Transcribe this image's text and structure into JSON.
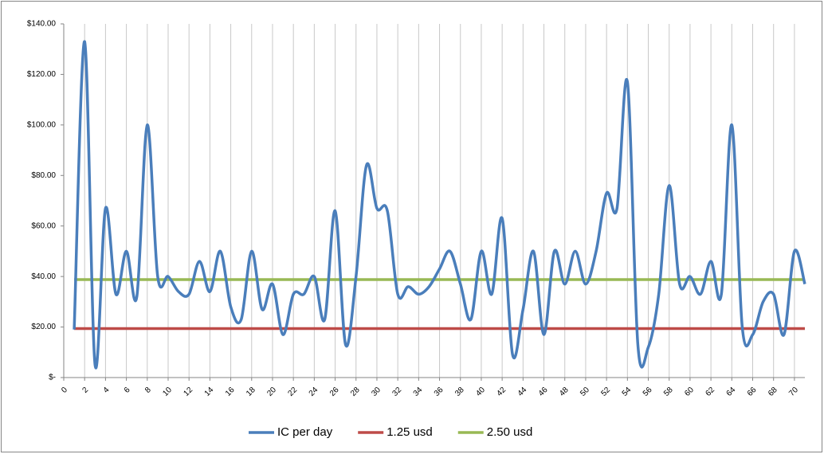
{
  "chart_data": {
    "type": "line",
    "x": [
      1,
      2,
      3,
      4,
      5,
      6,
      7,
      8,
      9,
      10,
      11,
      12,
      13,
      14,
      15,
      16,
      17,
      18,
      19,
      20,
      21,
      22,
      23,
      24,
      25,
      26,
      27,
      28,
      29,
      30,
      31,
      32,
      33,
      34,
      35,
      36,
      37,
      38,
      39,
      40,
      41,
      42,
      43,
      44,
      45,
      46,
      47,
      48,
      49,
      50,
      51,
      52,
      53,
      54,
      55,
      56,
      57,
      58,
      59,
      60,
      61,
      62,
      63,
      64,
      65,
      66,
      67,
      68,
      69,
      70,
      71
    ],
    "series": [
      {
        "name": "IC per day",
        "color": "#4a7ebb",
        "values": [
          19,
          133,
          5,
          67,
          33,
          50,
          32,
          100,
          40,
          40,
          34,
          33,
          46,
          34,
          50,
          28,
          23,
          50,
          27,
          37,
          17,
          33,
          33,
          40,
          23,
          66,
          13,
          40,
          84,
          67,
          66,
          33,
          36,
          33,
          36,
          43,
          50,
          37,
          23,
          50,
          33,
          63,
          9,
          27,
          50,
          17,
          50,
          37,
          50,
          37,
          50,
          73,
          67,
          117,
          13,
          12,
          33,
          76,
          37,
          40,
          33,
          46,
          33,
          100,
          20,
          17,
          30,
          33,
          17,
          50,
          37
        ]
      },
      {
        "name": "1.25 usd",
        "color": "#be4b48",
        "values": [
          19.4,
          19.4,
          19.4,
          19.4,
          19.4,
          19.4,
          19.4,
          19.4,
          19.4,
          19.4,
          19.4,
          19.4,
          19.4,
          19.4,
          19.4,
          19.4,
          19.4,
          19.4,
          19.4,
          19.4,
          19.4,
          19.4,
          19.4,
          19.4,
          19.4,
          19.4,
          19.4,
          19.4,
          19.4,
          19.4,
          19.4,
          19.4,
          19.4,
          19.4,
          19.4,
          19.4,
          19.4,
          19.4,
          19.4,
          19.4,
          19.4,
          19.4,
          19.4,
          19.4,
          19.4,
          19.4,
          19.4,
          19.4,
          19.4,
          19.4,
          19.4,
          19.4,
          19.4,
          19.4,
          19.4,
          19.4,
          19.4,
          19.4,
          19.4,
          19.4,
          19.4,
          19.4,
          19.4,
          19.4,
          19.4,
          19.4,
          19.4,
          19.4,
          19.4,
          19.4,
          19.4
        ]
      },
      {
        "name": "2.50 usd",
        "color": "#98b954",
        "values": [
          38.8,
          38.8,
          38.8,
          38.8,
          38.8,
          38.8,
          38.8,
          38.8,
          38.8,
          38.8,
          38.8,
          38.8,
          38.8,
          38.8,
          38.8,
          38.8,
          38.8,
          38.8,
          38.8,
          38.8,
          38.8,
          38.8,
          38.8,
          38.8,
          38.8,
          38.8,
          38.8,
          38.8,
          38.8,
          38.8,
          38.8,
          38.8,
          38.8,
          38.8,
          38.8,
          38.8,
          38.8,
          38.8,
          38.8,
          38.8,
          38.8,
          38.8,
          38.8,
          38.8,
          38.8,
          38.8,
          38.8,
          38.8,
          38.8,
          38.8,
          38.8,
          38.8,
          38.8,
          38.8,
          38.8,
          38.8,
          38.8,
          38.8,
          38.8,
          38.8,
          38.8,
          38.8,
          38.8,
          38.8,
          38.8,
          38.8,
          38.8,
          38.8,
          38.8,
          38.8,
          38.8
        ]
      }
    ],
    "xlim": [
      0,
      71
    ],
    "xticks": [
      0,
      2,
      4,
      6,
      8,
      10,
      12,
      14,
      16,
      18,
      20,
      22,
      24,
      26,
      28,
      30,
      32,
      34,
      36,
      38,
      40,
      42,
      44,
      46,
      48,
      50,
      52,
      54,
      56,
      58,
      60,
      62,
      64,
      66,
      68,
      70
    ],
    "ylim": [
      0,
      140
    ],
    "yticks": [
      {
        "value": 0,
        "label": "$-"
      },
      {
        "value": 20,
        "label": "$20.00"
      },
      {
        "value": 40,
        "label": "$40.00"
      },
      {
        "value": 60,
        "label": "$60.00"
      },
      {
        "value": 80,
        "label": "$80.00"
      },
      {
        "value": 100,
        "label": "$100.00"
      },
      {
        "value": 120,
        "label": "$120.00"
      },
      {
        "value": 140,
        "label": "$140.00"
      }
    ],
    "grid": true,
    "legend": "bottom",
    "smooth": true
  }
}
